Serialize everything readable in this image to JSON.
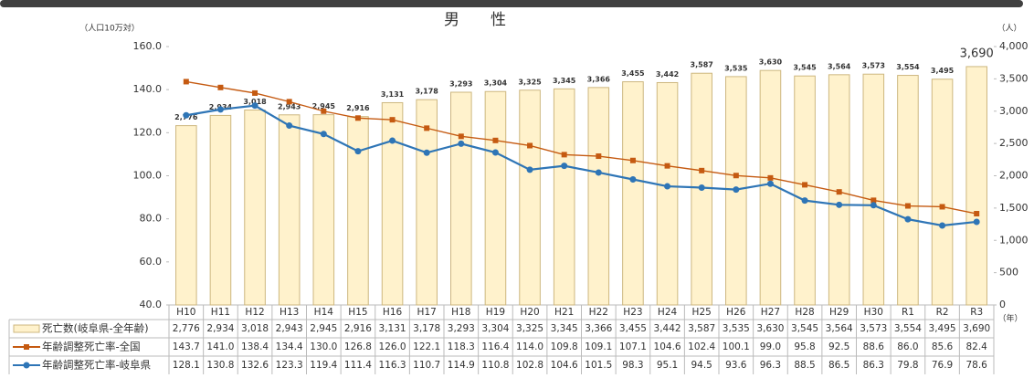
{
  "chart_data": {
    "type": "bar_line_table",
    "title": "男　　性",
    "y_label": "（人口10万対）",
    "y2_label": "（人）",
    "x_label": "（年）",
    "categories": [
      "H10",
      "H11",
      "H12",
      "H13",
      "H14",
      "H15",
      "H16",
      "H17",
      "H18",
      "H19",
      "H20",
      "H21",
      "H22",
      "H23",
      "H24",
      "H25",
      "H26",
      "H27",
      "H28",
      "H29",
      "H30",
      "R1",
      "R2",
      "R3"
    ],
    "ylim": [
      40,
      160
    ],
    "yticks": [
      {
        "value": 40,
        "label": "40.0"
      },
      {
        "value": 60,
        "label": "60.0"
      },
      {
        "value": 80,
        "label": "80.0"
      },
      {
        "value": 100,
        "label": "100.0"
      },
      {
        "value": 120,
        "label": "120.0"
      },
      {
        "value": 140,
        "label": "140.0"
      },
      {
        "value": 160,
        "label": "160.0"
      }
    ],
    "y2lim": [
      0,
      4000
    ],
    "y2ticks": [
      0,
      500,
      {
        "value": 1000,
        "label": "1,000"
      },
      {
        "value": 1500,
        "label": "1,500"
      },
      {
        "value": 2000,
        "label": "2,000"
      },
      {
        "value": 2500,
        "label": "2,500"
      },
      {
        "value": 3000,
        "label": "3,000"
      },
      {
        "value": 3500,
        "label": "3,500"
      },
      {
        "value": 4000,
        "label": "4,000"
      }
    ],
    "series": [
      {
        "name": "死亡数(岐阜県-全年齢)",
        "type": "bar",
        "axis": "y2",
        "color": "#fff2cc",
        "values": [
          2776,
          2934,
          3018,
          2943,
          2945,
          2916,
          3131,
          3178,
          3293,
          3304,
          3325,
          3345,
          3366,
          3455,
          3442,
          3587,
          3535,
          3630,
          3545,
          3564,
          3573,
          3554,
          3495,
          3690
        ],
        "value_labels": [
          "2,776",
          "2,934",
          "3,018",
          "2,943",
          "2,945",
          "2,916",
          "3,131",
          "3,178",
          "3,293",
          "3,304",
          "3,325",
          "3,345",
          "3,366",
          "3,455",
          "3,442",
          "3,587",
          "3,535",
          "3,630",
          "3,545",
          "3,564",
          "3,573",
          "3,554",
          "3,495",
          "3,690"
        ]
      },
      {
        "name": "年齢調整死亡率-全国",
        "type": "line",
        "marker": "square",
        "color": "#c55a11",
        "values": [
          143.7,
          141.0,
          138.4,
          134.4,
          130.0,
          126.8,
          126.0,
          122.1,
          118.3,
          116.4,
          114.0,
          109.8,
          109.1,
          107.1,
          104.6,
          102.4,
          100.1,
          99.0,
          95.8,
          92.5,
          88.6,
          86.0,
          85.6,
          82.4
        ],
        "value_labels": [
          "143.7",
          "141.0",
          "138.4",
          "134.4",
          "130.0",
          "126.8",
          "126.0",
          "122.1",
          "118.3",
          "116.4",
          "114.0",
          "109.8",
          "109.1",
          "107.1",
          "104.6",
          "102.4",
          "100.1",
          "99.0",
          "95.8",
          "92.5",
          "88.6",
          "86.0",
          "85.6",
          "82.4"
        ]
      },
      {
        "name": "年齢調整死亡率-岐阜県",
        "type": "line",
        "marker": "circle",
        "color": "#2e75b6",
        "values": [
          128.1,
          130.8,
          132.6,
          123.3,
          119.4,
          111.4,
          116.3,
          110.7,
          114.9,
          110.8,
          102.8,
          104.6,
          101.5,
          98.3,
          95.1,
          94.5,
          93.6,
          96.3,
          88.5,
          86.5,
          86.3,
          79.8,
          76.9,
          78.6
        ],
        "value_labels": [
          "128.1",
          "130.8",
          "132.6",
          "123.3",
          "119.4",
          "111.4",
          "116.3",
          "110.7",
          "114.9",
          "110.8",
          "102.8",
          "104.6",
          "101.5",
          "98.3",
          "95.1",
          "94.5",
          "93.6",
          "96.3",
          "88.5",
          "86.5",
          "86.3",
          "79.8",
          "76.9",
          "78.6"
        ]
      }
    ]
  }
}
